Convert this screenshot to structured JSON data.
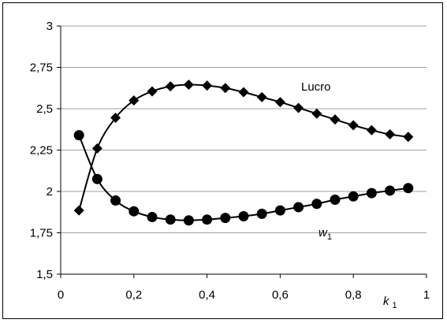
{
  "chart_data": {
    "type": "line",
    "title": "",
    "xlabel": "k 1",
    "ylabel": "",
    "xlim": [
      0,
      1
    ],
    "ylim": [
      1.5,
      3
    ],
    "grid": "horizontal",
    "x_ticks": [
      "0",
      "0,2",
      "0,4",
      "0,6",
      "0,8",
      "1"
    ],
    "y_ticks": [
      "1,5",
      "1,75",
      "2",
      "2,25",
      "2,5",
      "2,75",
      "3"
    ],
    "series": [
      {
        "name": "Lucro",
        "marker": "diamond",
        "x": [
          0.05,
          0.1,
          0.15,
          0.2,
          0.25,
          0.3,
          0.35,
          0.4,
          0.45,
          0.5,
          0.55,
          0.6,
          0.65,
          0.7,
          0.75,
          0.8,
          0.85,
          0.9,
          0.95
        ],
        "y": [
          1.885,
          2.26,
          2.445,
          2.55,
          2.605,
          2.635,
          2.645,
          2.64,
          2.625,
          2.6,
          2.57,
          2.54,
          2.505,
          2.47,
          2.435,
          2.4,
          2.37,
          2.345,
          2.33
        ]
      },
      {
        "name": "w1",
        "marker": "circle",
        "x": [
          0.05,
          0.1,
          0.15,
          0.2,
          0.25,
          0.3,
          0.35,
          0.4,
          0.45,
          0.5,
          0.55,
          0.6,
          0.65,
          0.7,
          0.75,
          0.8,
          0.85,
          0.9,
          0.95
        ],
        "y": [
          2.34,
          2.075,
          1.945,
          1.88,
          1.845,
          1.83,
          1.825,
          1.83,
          1.84,
          1.85,
          1.865,
          1.885,
          1.905,
          1.925,
          1.95,
          1.97,
          1.99,
          2.005,
          2.02
        ]
      }
    ],
    "annotations": {
      "lucro_label": "Lucro",
      "w1_label_main": "w",
      "w1_label_sub": "1",
      "xlabel_main": "k",
      "xlabel_sub": "1"
    }
  }
}
